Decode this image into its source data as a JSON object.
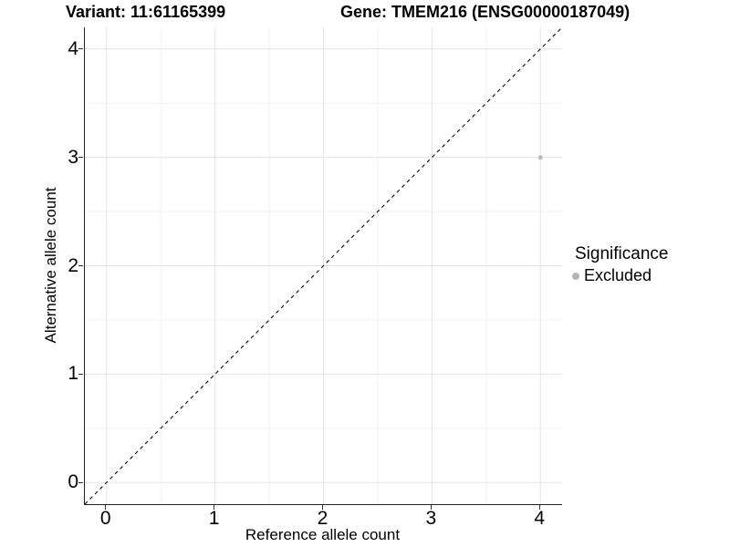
{
  "chart_data": {
    "type": "scatter",
    "title_left": "Variant: 11:61165399",
    "title_right": "Gene: TMEM216 (ENSG00000187049)",
    "xlabel": "Reference allele count",
    "ylabel": "Alternative allele count",
    "xlim": [
      -0.2,
      4.2
    ],
    "ylim": [
      -0.2,
      4.2
    ],
    "x_ticks": [
      0,
      1,
      2,
      3,
      4
    ],
    "y_ticks": [
      0,
      1,
      2,
      3,
      4
    ],
    "x_tick_labels": [
      "0",
      "1",
      "2",
      "3",
      "4"
    ],
    "y_tick_labels": [
      "0",
      "1",
      "2",
      "3",
      "4"
    ],
    "minor_ticks": [
      0.5,
      1.5,
      2.5,
      3.5
    ],
    "grid": true,
    "identity_line": {
      "style": "dashed",
      "from": [
        -0.2,
        -0.2
      ],
      "to": [
        4.2,
        4.2
      ],
      "color": "#000000"
    },
    "series": [
      {
        "name": "Excluded",
        "color": "#bebebe",
        "points": [
          {
            "x": 4,
            "y": 3
          }
        ],
        "point_radius": 2.6
      }
    ],
    "legend": {
      "title": "Significance",
      "position": "right",
      "items": [
        {
          "label": "Excluded",
          "color": "#b5b5b5"
        }
      ]
    },
    "colors": {
      "grid_major": "#e4e4e4",
      "grid_minor": "#f1f1f1",
      "axis_line": "#222222",
      "point": "#bebebe"
    }
  }
}
